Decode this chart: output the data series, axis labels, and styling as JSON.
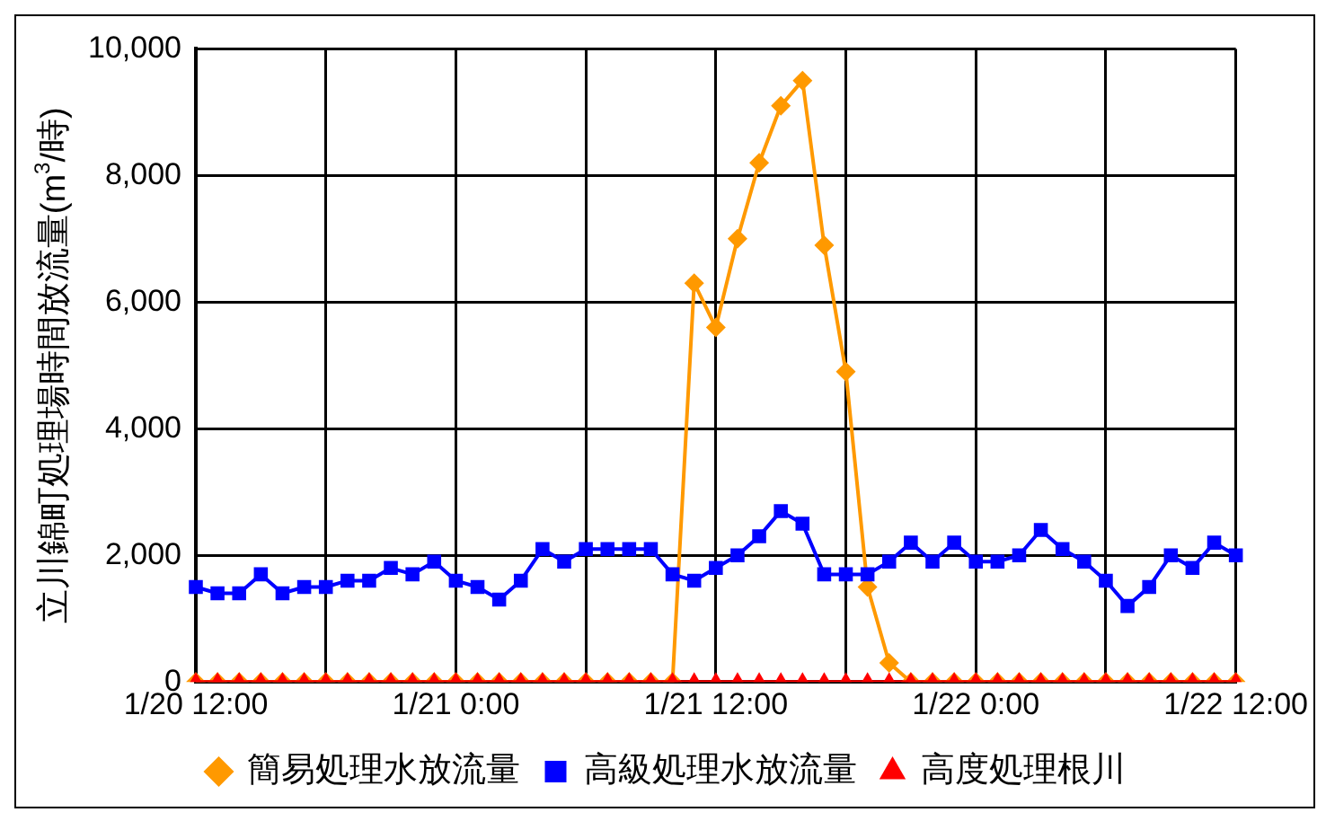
{
  "chart_data": {
    "type": "line",
    "ylabel": "立川錦町処理場時間放流量(m$^{3}$/時)",
    "categories": [
      "1/20 12:00",
      null,
      null,
      null,
      null,
      null,
      null,
      null,
      null,
      null,
      null,
      null,
      "1/21 0:00",
      null,
      null,
      null,
      null,
      null,
      null,
      null,
      null,
      null,
      null,
      null,
      "1/21 12:00",
      null,
      null,
      null,
      null,
      null,
      null,
      null,
      null,
      null,
      null,
      null,
      "1/22 0:00",
      null,
      null,
      null,
      null,
      null,
      null,
      null,
      null,
      null,
      null,
      null,
      "1/22 12:00"
    ],
    "ylim": [
      0,
      10000
    ],
    "yticks": [
      0,
      {
        "value": 2000,
        "label": "2,000"
      },
      {
        "value": 4000,
        "label": "4,000"
      },
      {
        "value": 6000,
        "label": "6,000"
      },
      {
        "value": 8000,
        "label": "8,000"
      },
      {
        "value": 10000,
        "label": "10,000"
      }
    ],
    "grid": true,
    "legend": "bottom",
    "series": [
      {
        "name": "簡易処理水放流量",
        "color": "#ff9900",
        "marker": "diamond",
        "values": [
          0,
          0,
          0,
          0,
          0,
          0,
          0,
          0,
          0,
          0,
          0,
          0,
          0,
          0,
          0,
          0,
          0,
          0,
          0,
          0,
          0,
          0,
          0,
          6300,
          5600,
          7000,
          8200,
          9100,
          9500,
          6900,
          4900,
          1500,
          300,
          0,
          0,
          0,
          0,
          0,
          0,
          0,
          0,
          0,
          0,
          0,
          0,
          0,
          0,
          0,
          0
        ]
      },
      {
        "name": "高級処理水放流量",
        "color": "#0000ff",
        "marker": "square",
        "values": [
          1500,
          1400,
          1400,
          1700,
          1400,
          1500,
          1500,
          1600,
          1600,
          1800,
          1700,
          1900,
          1600,
          1500,
          1300,
          1600,
          2100,
          1900,
          2100,
          2100,
          2100,
          2100,
          1700,
          1600,
          1800,
          2000,
          2300,
          2700,
          2500,
          1700,
          1700,
          1700,
          1900,
          2200,
          1900,
          2200,
          1900,
          1900,
          2000,
          2400,
          2100,
          1900,
          1600,
          1200,
          1500,
          2000,
          1800,
          2200,
          2000
        ]
      },
      {
        "name": "高度処理根川",
        "color": "#ff0000",
        "marker": "triangle",
        "values": [
          0,
          0,
          0,
          0,
          0,
          0,
          0,
          0,
          0,
          0,
          0,
          0,
          0,
          0,
          0,
          0,
          0,
          0,
          0,
          0,
          0,
          0,
          0,
          0,
          0,
          0,
          0,
          0,
          0,
          0,
          0,
          0,
          0,
          0,
          0,
          0,
          0,
          0,
          0,
          0,
          0,
          0,
          0,
          0,
          0,
          0,
          0,
          0,
          0
        ]
      }
    ]
  }
}
